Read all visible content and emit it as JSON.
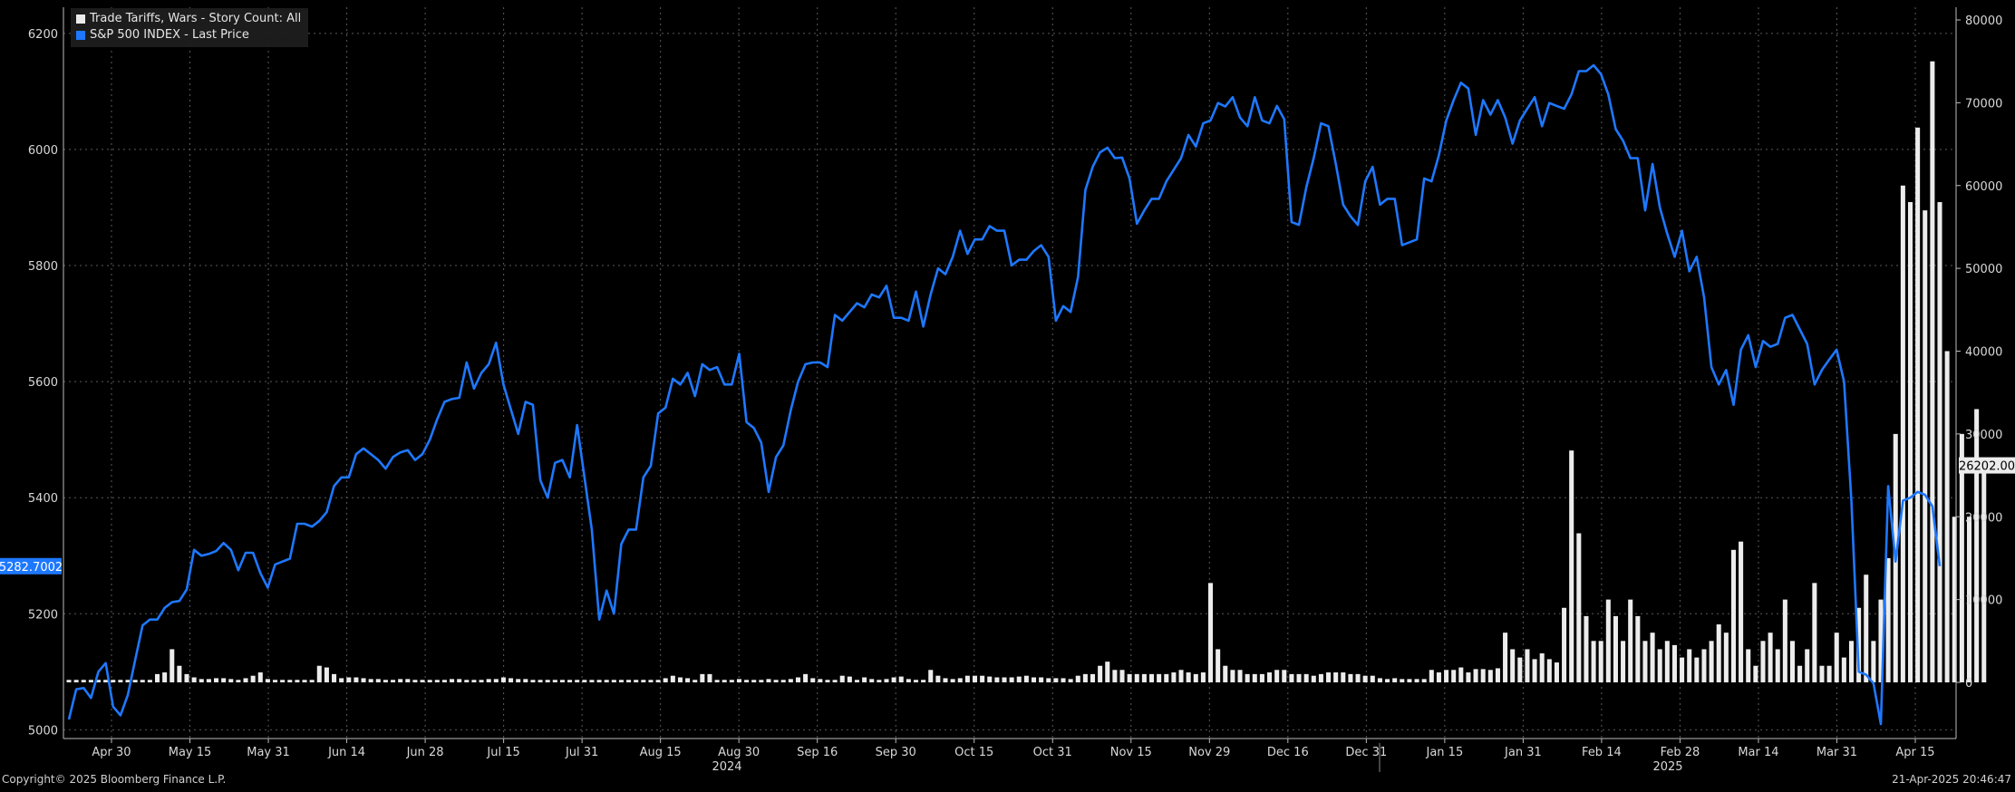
{
  "legend": {
    "story_count": "Trade Tariffs, Wars - Story Count: All",
    "spx": "S&P 500 INDEX - Last Price"
  },
  "footer": {
    "copyright": "Copyright© 2025 Bloomberg Finance L.P.",
    "timestamp": "21-Apr-2025 20:46:47"
  },
  "colors": {
    "background": "#000000",
    "line": "#1e78ff",
    "bars": "#ececec",
    "grid": "#5a5a5a"
  },
  "chart_data": {
    "type": "bar+line",
    "x_tick_labels": [
      "Apr 30",
      "May 15",
      "May 31",
      "Jun 14",
      "Jun 28",
      "Jul 15",
      "Jul 31",
      "Aug 15",
      "Aug 30",
      "Sep 16",
      "Sep 30",
      "Oct 15",
      "Oct 31",
      "Nov 15",
      "Nov 29",
      "Dec 16",
      "Dec 31",
      "Jan 15",
      "Jan 31",
      "Feb 14",
      "Feb 28",
      "Mar 14",
      "Mar 31",
      "Apr 15"
    ],
    "year_labels": [
      "2024",
      "2025"
    ],
    "left_axis": {
      "ticks": [
        5000,
        5200,
        5400,
        5600,
        5800,
        6000,
        6200
      ],
      "range": [
        4985,
        6245
      ]
    },
    "right_axis": {
      "ticks": [
        0,
        10000,
        20000,
        30000,
        40000,
        50000,
        60000,
        70000,
        80000
      ],
      "range": [
        0,
        80000
      ]
    },
    "last_values": {
      "spx": "5282.7002",
      "story_count": "26202.00"
    },
    "series": [
      {
        "name": "S&P 500 INDEX - Last Price",
        "axis": "left",
        "type": "line",
        "values": [
          5018,
          5070,
          5072,
          5055,
          5100,
          5115,
          5040,
          5025,
          5060,
          5120,
          5180,
          5190,
          5190,
          5210,
          5220,
          5222,
          5242,
          5310,
          5300,
          5303,
          5308,
          5322,
          5310,
          5275,
          5305,
          5305,
          5270,
          5245,
          5285,
          5290,
          5295,
          5355,
          5355,
          5350,
          5360,
          5375,
          5420,
          5435,
          5435,
          5475,
          5485,
          5475,
          5465,
          5450,
          5470,
          5478,
          5482,
          5465,
          5475,
          5500,
          5535,
          5565,
          5570,
          5572,
          5633,
          5588,
          5615,
          5630,
          5667,
          5595,
          5552,
          5510,
          5565,
          5560,
          5430,
          5400,
          5460,
          5465,
          5435,
          5525,
          5435,
          5345,
          5190,
          5240,
          5200,
          5320,
          5345,
          5345,
          5435,
          5455,
          5545,
          5555,
          5605,
          5595,
          5615,
          5575,
          5630,
          5620,
          5625,
          5595,
          5595,
          5648,
          5530,
          5520,
          5495,
          5410,
          5470,
          5490,
          5550,
          5600,
          5630,
          5633,
          5633,
          5625,
          5715,
          5705,
          5720,
          5735,
          5728,
          5750,
          5745,
          5765,
          5710,
          5710,
          5705,
          5755,
          5695,
          5750,
          5795,
          5785,
          5815,
          5860,
          5820,
          5845,
          5845,
          5868,
          5860,
          5860,
          5800,
          5810,
          5810,
          5825,
          5835,
          5815,
          5705,
          5730,
          5720,
          5780,
          5930,
          5970,
          5995,
          6003,
          5985,
          5986,
          5950,
          5872,
          5895,
          5915,
          5915,
          5945,
          5965,
          5985,
          6025,
          6005,
          6045,
          6050,
          6080,
          6074,
          6090,
          6055,
          6040,
          6090,
          6050,
          6045,
          6075,
          6052,
          5875,
          5870,
          5935,
          5985,
          6045,
          6040,
          5975,
          5905,
          5885,
          5870,
          5945,
          5970,
          5905,
          5915,
          5915,
          5835,
          5840,
          5845,
          5950,
          5945,
          5990,
          6050,
          6085,
          6115,
          6105,
          6025,
          6085,
          6060,
          6085,
          6055,
          6010,
          6050,
          6070,
          6090,
          6040,
          6080,
          6075,
          6070,
          6095,
          6135,
          6135,
          6145,
          6130,
          6095,
          6035,
          6015,
          5985,
          5985,
          5895,
          5975,
          5900,
          5855,
          5815,
          5860,
          5790,
          5815,
          5745,
          5625,
          5595,
          5620,
          5560,
          5655,
          5680,
          5625,
          5670,
          5660,
          5665,
          5710,
          5715,
          5690,
          5665,
          5595,
          5620,
          5638,
          5655,
          5600,
          5395,
          5100,
          5095,
          5080,
          5010,
          5420,
          5290,
          5395,
          5400,
          5410,
          5405,
          5385,
          5282
        ]
      },
      {
        "name": "Trade Tariffs, Wars - Story Count: All",
        "axis": "right",
        "type": "bar",
        "values": [
          300,
          300,
          300,
          300,
          300,
          300,
          300,
          300,
          300,
          300,
          300,
          300,
          1000,
          1200,
          4000,
          2000,
          1000,
          600,
          400,
          400,
          500,
          500,
          400,
          300,
          500,
          800,
          1200,
          400,
          300,
          300,
          300,
          300,
          300,
          300,
          2000,
          1800,
          1000,
          500,
          600,
          600,
          500,
          400,
          400,
          300,
          300,
          400,
          400,
          300,
          300,
          300,
          300,
          300,
          400,
          400,
          300,
          300,
          300,
          400,
          400,
          600,
          500,
          400,
          400,
          300,
          300,
          300,
          300,
          300,
          300,
          300,
          300,
          300,
          300,
          300,
          300,
          300,
          300,
          300,
          300,
          300,
          300,
          500,
          800,
          600,
          500,
          300,
          1000,
          1000,
          300,
          300,
          300,
          400,
          300,
          300,
          300,
          400,
          300,
          300,
          400,
          600,
          1000,
          500,
          400,
          300,
          300,
          800,
          700,
          300,
          600,
          400,
          300,
          400,
          600,
          700,
          400,
          300,
          300,
          1500,
          800,
          500,
          400,
          500,
          800,
          800,
          800,
          700,
          600,
          600,
          600,
          700,
          800,
          600,
          600,
          500,
          500,
          500,
          400,
          800,
          1000,
          1000,
          2000,
          2500,
          1500,
          1500,
          1000,
          1000,
          1000,
          1000,
          1000,
          1000,
          1200,
          1500,
          1200,
          1000,
          1200,
          12000,
          4000,
          2000,
          1500,
          1500,
          1000,
          1000,
          1000,
          1200,
          1500,
          1500,
          1000,
          1000,
          1000,
          800,
          1000,
          1200,
          1200,
          1200,
          1000,
          1000,
          800,
          800,
          500,
          400,
          500,
          400,
          400,
          400,
          400,
          1500,
          1200,
          1500,
          1500,
          1800,
          1200,
          1600,
          1600,
          1500,
          1700,
          6000,
          4000,
          3000,
          4000,
          2800,
          3500,
          2800,
          2400,
          9000,
          28000,
          18000,
          8000,
          5000,
          5000,
          10000,
          8000,
          5000,
          10000,
          8000,
          5000,
          6000,
          4000,
          5000,
          4500,
          3000,
          4000,
          3000,
          4000,
          5000,
          7000,
          6000,
          16000,
          17000,
          4000,
          2000,
          5000,
          6000,
          4000,
          10000,
          5000,
          2000,
          4000,
          12000,
          2000,
          2000,
          6000,
          3000,
          5000,
          9000,
          13000,
          5000,
          10000,
          15000,
          30000,
          60000,
          58000,
          67000,
          57000,
          75000,
          58000,
          40000,
          20000,
          30000,
          20000,
          33000,
          26202
        ]
      }
    ]
  }
}
